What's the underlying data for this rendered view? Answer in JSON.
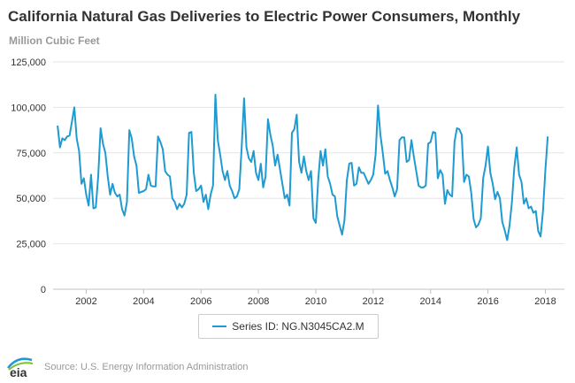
{
  "title": "California Natural Gas Deliveries to Electric Power Consumers, Monthly",
  "subtitle": "Million Cubic Feet",
  "source": "Source: U.S. Energy Information Administration",
  "logo_text": "eia",
  "legend_label": "Series ID: NG.N3045CA2.M",
  "colors": {
    "line": "#1f9bd1",
    "grid": "#e6e6e6",
    "axis_text": "#333333"
  },
  "chart_data": {
    "type": "line",
    "title": "California Natural Gas Deliveries to Electric Power Consumers, Monthly",
    "ylabel": "Million Cubic Feet",
    "ylim": [
      0,
      125000
    ],
    "yticks": [
      0,
      25000,
      50000,
      75000,
      100000,
      125000
    ],
    "yticklabels": [
      "0",
      "25,000",
      "50,000",
      "75,000",
      "100,000",
      "125,000"
    ],
    "xticklabels": [
      "2002",
      "2004",
      "2006",
      "2008",
      "2010",
      "2012",
      "2014",
      "2016",
      "2018"
    ],
    "xstart": "2001-01",
    "grid": "horizontal",
    "legend": "bottom-center",
    "series": [
      {
        "name": "Series ID: NG.N3045CA2.M",
        "values": [
          90000,
          78000,
          83000,
          82000,
          84000,
          84500,
          92000,
          100000,
          83000,
          76000,
          58000,
          61000,
          52000,
          46000,
          63000,
          44500,
          45000,
          62000,
          88500,
          80000,
          75000,
          62000,
          52000,
          58000,
          53000,
          51000,
          52000,
          44000,
          40500,
          48000,
          87500,
          83000,
          73000,
          68000,
          53000,
          53500,
          54000,
          55000,
          63000,
          57000,
          56500,
          56500,
          84000,
          81000,
          77000,
          65000,
          63000,
          62000,
          50000,
          48000,
          44000,
          47000,
          45000,
          47000,
          52000,
          86000,
          86500,
          64000,
          54000,
          55000,
          57000,
          48000,
          52000,
          44000,
          52000,
          57000,
          107000,
          82000,
          74000,
          65000,
          60000,
          65000,
          57000,
          54000,
          50000,
          51000,
          55000,
          78000,
          105000,
          78000,
          72000,
          70000,
          76000,
          64000,
          60000,
          69000,
          56000,
          62000,
          93500,
          85000,
          79000,
          68000,
          74000,
          66000,
          58000,
          50000,
          52000,
          46000,
          86000,
          88000,
          96000,
          70000,
          64000,
          73000,
          65000,
          60000,
          65000,
          39000,
          36500,
          60000,
          76000,
          68000,
          77000,
          62000,
          58000,
          52000,
          51000,
          40000,
          35000,
          30000,
          38000,
          60000,
          69000,
          69500,
          57000,
          58000,
          67000,
          64000,
          64000,
          61000,
          58000,
          60000,
          63000,
          74000,
          101000,
          85000,
          75000,
          63500,
          65000,
          60000,
          56000,
          51000,
          55000,
          82000,
          83500,
          83500,
          70000,
          71000,
          82000,
          73000,
          65000,
          57000,
          56000,
          56000,
          57000,
          80000,
          81000,
          86500,
          86000,
          61000,
          65500,
          63000,
          47000,
          54500,
          52000,
          51000,
          81000,
          88500,
          88000,
          85000,
          59000,
          63000,
          62000,
          53000,
          38500,
          34000,
          35500,
          39000,
          61000,
          68000,
          78500,
          64000,
          58000,
          49500,
          53500,
          50000,
          37000,
          32500,
          27000,
          35000,
          48000,
          67000,
          78000,
          63000,
          59000,
          47000,
          50000,
          44500,
          45500,
          42000,
          43000,
          32000,
          29000,
          43000,
          65500,
          84000
        ]
      }
    ]
  }
}
